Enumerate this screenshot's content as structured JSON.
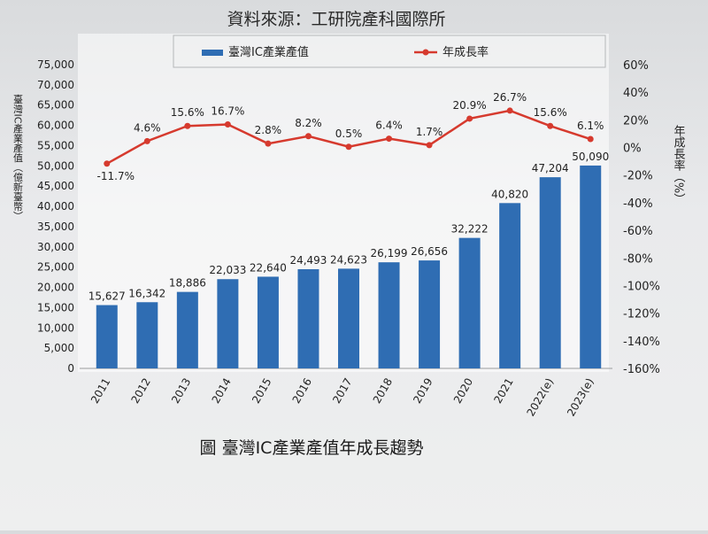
{
  "source": "資料來源：工研院產科國際所",
  "caption": "圖  臺灣IC產業產值年成長趨勢",
  "colors": {
    "bar": "#2f6db3",
    "line": "#d63a2e",
    "text": "#222222",
    "grid": "#c7c8ca"
  },
  "chart_data": {
    "type": "bar",
    "categories": [
      "2011",
      "2012",
      "2013",
      "2014",
      "2015",
      "2016",
      "2017",
      "2018",
      "2019",
      "2020",
      "2021",
      "2022(e)",
      "2023(e)"
    ],
    "series": [
      {
        "name": "臺灣IC產業產值",
        "type": "bar",
        "axis": "left",
        "values": [
          15627,
          16342,
          18886,
          22033,
          22640,
          24493,
          24623,
          26199,
          26656,
          32222,
          40820,
          47204,
          50090
        ],
        "labels": [
          "15,627",
          "16,342",
          "18,886",
          "22,033",
          "22,640",
          "24,493",
          "24,623",
          "26,199",
          "26,656",
          "32,222",
          "40,820",
          "47,204",
          "50,090"
        ]
      },
      {
        "name": "年成長率",
        "type": "line",
        "axis": "right",
        "values": [
          -11.7,
          4.6,
          15.6,
          16.7,
          2.8,
          8.2,
          0.5,
          6.4,
          1.7,
          20.9,
          26.7,
          15.6,
          6.1
        ],
        "labels": [
          "-11.7%",
          "4.6%",
          "15.6%",
          "16.7%",
          "2.8%",
          "8.2%",
          "0.5%",
          "6.4%",
          "1.7%",
          "20.9%",
          "26.7%",
          "15.6%",
          "6.1%"
        ]
      }
    ],
    "ylabel": "臺灣IC產業產值（億新臺幣）",
    "ylabel2": "年成長率（%）",
    "ylim": [
      0,
      75000
    ],
    "y2lim": [
      -160,
      60
    ],
    "yticks": [
      "0",
      "5,000",
      "10,000",
      "15,000",
      "20,000",
      "25,000",
      "30,000",
      "35,000",
      "40,000",
      "45,000",
      "50,000",
      "55,000",
      "60,000",
      "65,000",
      "70,000",
      "75,000"
    ],
    "y2ticks": [
      "-160%",
      "-140%",
      "-120%",
      "-100%",
      "-80%",
      "-60%",
      "-40%",
      "-20%",
      "0%",
      "20%",
      "40%",
      "60%"
    ],
    "grid": false,
    "legend": "top"
  }
}
